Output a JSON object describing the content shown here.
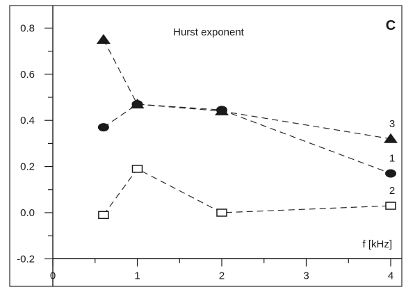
{
  "chart_data": {
    "type": "scatter",
    "panel_label": "C",
    "title": "Hurst exponent",
    "xlabel": "f [kHz]",
    "ylabel": "",
    "xlim": [
      0,
      4.05
    ],
    "ylim": [
      -0.2,
      0.84
    ],
    "x_ticks": [
      "0",
      "1",
      "2",
      "3",
      "4"
    ],
    "y_ticks": [
      "-0.2",
      "0.0",
      "0.2",
      "0.4",
      "0.6",
      "0.8"
    ],
    "grid": false,
    "line_style": "dashed",
    "series": [
      {
        "label": "1",
        "marker": "filled-circle",
        "x": [
          0.6,
          1,
          2,
          4
        ],
        "y": [
          0.37,
          0.47,
          0.445,
          0.17
        ]
      },
      {
        "label": "2",
        "marker": "open-square",
        "x": [
          0.6,
          1,
          2,
          4
        ],
        "y": [
          -0.01,
          0.19,
          0.0,
          0.03
        ]
      },
      {
        "label": "3",
        "marker": "filled-triangle",
        "x": [
          0.6,
          1,
          2,
          4
        ],
        "y": [
          0.75,
          0.47,
          0.44,
          0.32
        ]
      }
    ]
  }
}
